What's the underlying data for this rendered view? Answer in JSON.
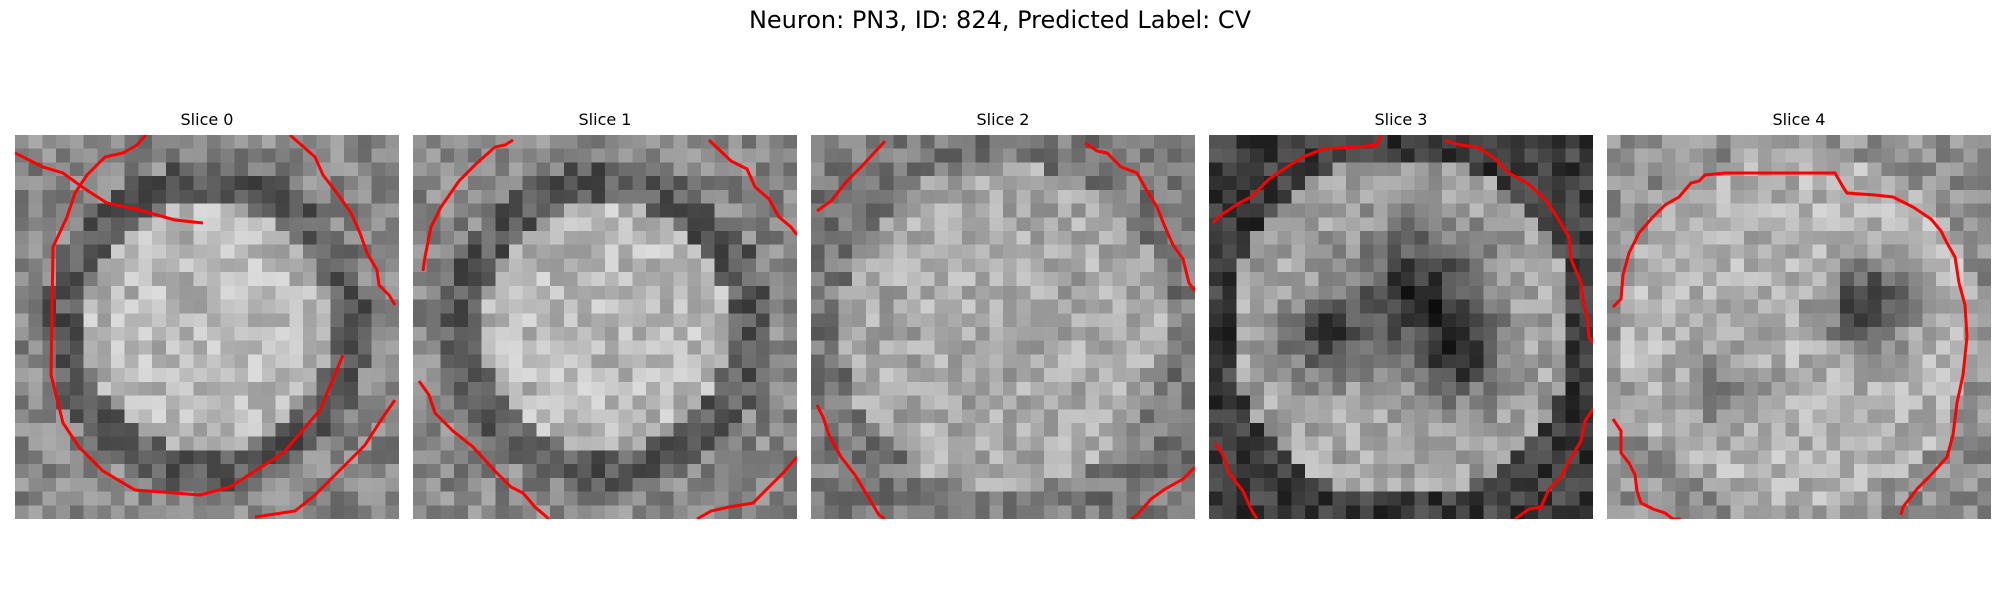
{
  "title": "Neuron: PN3, ID: 824, Predicted Label: CV",
  "contour_color": "#ff0000",
  "slices": [
    {
      "label": "Slice 0",
      "texture": "bright-disk"
    },
    {
      "label": "Slice 1",
      "texture": "bright-disk"
    },
    {
      "label": "Slice 2",
      "texture": "uniform-noise"
    },
    {
      "label": "Slice 3",
      "texture": "dark-blobs"
    },
    {
      "label": "Slice 4",
      "texture": "single-dark-blob"
    }
  ]
}
